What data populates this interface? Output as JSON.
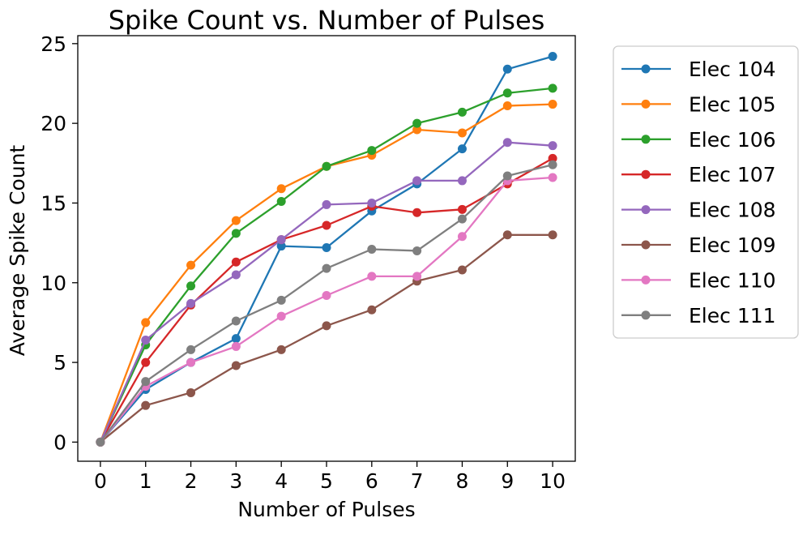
{
  "chart_data": {
    "type": "line",
    "title": "Spike Count vs. Number of Pulses",
    "xlabel": "Number of Pulses",
    "ylabel": "Average Spike Count",
    "x": [
      0,
      1,
      2,
      3,
      4,
      5,
      6,
      7,
      8,
      9,
      10
    ],
    "xlim": [
      -0.5,
      10.5
    ],
    "ylim": [
      -1.2,
      25.5
    ],
    "xticks": [
      "0",
      "1",
      "2",
      "3",
      "4",
      "5",
      "6",
      "7",
      "8",
      "9",
      "10"
    ],
    "yticks": [
      "0",
      "5",
      "10",
      "15",
      "20",
      "25"
    ],
    "ytick_values": [
      0,
      5,
      10,
      15,
      20,
      25
    ],
    "grid": false,
    "legend_position": "outside-right",
    "markers": "circle",
    "series": [
      {
        "name": "Elec 104",
        "color": "#1f77b4",
        "values": [
          0,
          3.3,
          5.0,
          6.5,
          12.3,
          12.2,
          14.5,
          16.2,
          18.4,
          23.4,
          24.2
        ]
      },
      {
        "name": "Elec 105",
        "color": "#ff7f0e",
        "values": [
          0,
          7.5,
          11.1,
          13.9,
          15.9,
          17.3,
          18.0,
          19.6,
          19.4,
          21.1,
          21.2
        ]
      },
      {
        "name": "Elec 106",
        "color": "#2ca02c",
        "values": [
          0,
          6.1,
          9.8,
          13.1,
          15.1,
          17.3,
          18.3,
          20.0,
          20.7,
          21.9,
          22.2
        ]
      },
      {
        "name": "Elec 107",
        "color": "#d62728",
        "values": [
          0,
          5.0,
          8.6,
          11.3,
          12.7,
          13.6,
          14.8,
          14.4,
          14.6,
          16.2,
          17.8
        ]
      },
      {
        "name": "Elec 108",
        "color": "#9467bd",
        "values": [
          0,
          6.4,
          8.7,
          10.5,
          12.7,
          14.9,
          15.0,
          16.4,
          16.4,
          18.8,
          18.6
        ]
      },
      {
        "name": "Elec 109",
        "color": "#8c564b",
        "values": [
          0,
          2.3,
          3.1,
          4.8,
          5.8,
          7.3,
          8.3,
          10.1,
          10.8,
          13.0,
          13.0
        ]
      },
      {
        "name": "Elec 110",
        "color": "#e377c2",
        "values": [
          0,
          3.5,
          5.0,
          6.0,
          7.9,
          9.2,
          10.4,
          10.4,
          12.9,
          16.4,
          16.6
        ]
      },
      {
        "name": "Elec 111",
        "color": "#7f7f7f",
        "values": [
          0,
          3.8,
          5.8,
          7.6,
          8.9,
          10.9,
          12.1,
          12.0,
          14.0,
          16.7,
          17.4
        ]
      }
    ]
  }
}
